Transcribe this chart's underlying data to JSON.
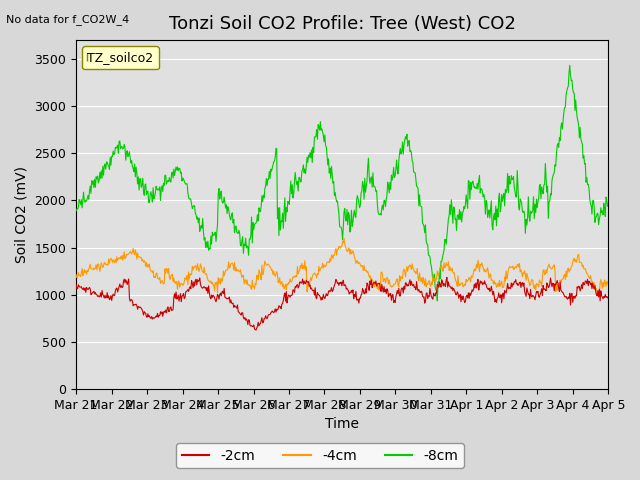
{
  "title": "Tonzi Soil CO2 Profile: Tree (West) CO2",
  "no_data_label": "No data for f_CO2W_4",
  "ylabel": "Soil CO2 (mV)",
  "xlabel": "Time",
  "legend_label": "TZ_soilco2",
  "ylim": [
    0,
    3700
  ],
  "yticks": [
    0,
    500,
    1000,
    1500,
    2000,
    2500,
    3000,
    3500
  ],
  "xtick_labels": [
    "Mar 21",
    "Mar 22",
    "Mar 23",
    "Mar 24",
    "Mar 25",
    "Mar 26",
    "Mar 27",
    "Mar 28",
    "Mar 29",
    "Mar 30",
    "Mar 31",
    "Apr 1",
    "Apr 2",
    "Apr 3",
    "Apr 4",
    "Apr 5"
  ],
  "line_colors": {
    "2cm": "#cc0000",
    "4cm": "#ff9900",
    "8cm": "#00cc00"
  },
  "legend_entries": [
    "-2cm",
    "-4cm",
    "-8cm"
  ],
  "title_fontsize": 13,
  "label_fontsize": 10,
  "tick_fontsize": 9,
  "plot_bg_color": "#e0e0e0"
}
